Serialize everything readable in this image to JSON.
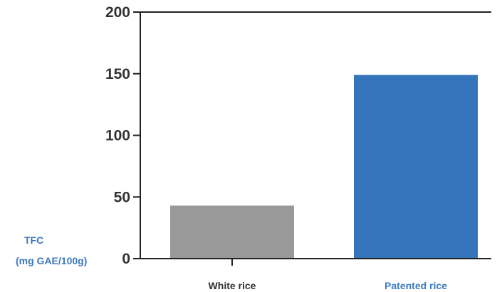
{
  "chart_data": {
    "type": "bar",
    "title": "",
    "xlabel": "",
    "ylabel": "TFC",
    "ylabel_unit": "(mg GAE/100g)",
    "categories": [
      "White rice",
      "Patented rice"
    ],
    "values": [
      43,
      149
    ],
    "ylim": [
      0,
      200
    ],
    "yticks": [
      0,
      50,
      100,
      150,
      200
    ],
    "bar_colors": [
      "#999999",
      "#3474bb"
    ],
    "category_label_colors": [
      "#333333",
      "#3c78bf"
    ],
    "ylabel_color": "#3c78bf",
    "axis_color": "#222222",
    "grid": false,
    "legend": "none"
  }
}
